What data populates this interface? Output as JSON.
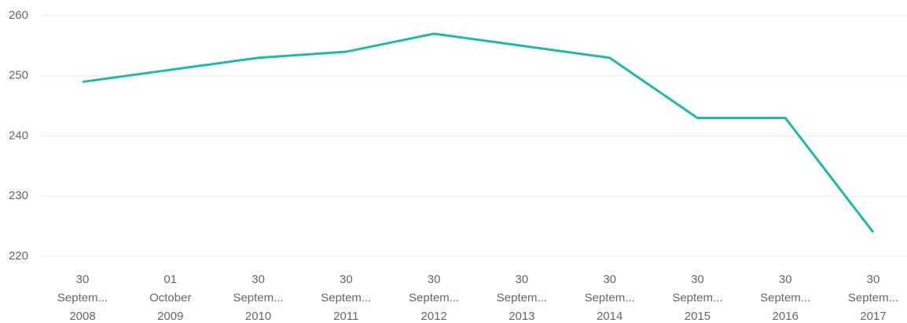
{
  "chart_data": {
    "type": "line",
    "categories": [
      [
        "30",
        "Septem...",
        "2008"
      ],
      [
        "01",
        "October",
        "2009"
      ],
      [
        "30",
        "Septem...",
        "2010"
      ],
      [
        "30",
        "Septem...",
        "2011"
      ],
      [
        "30",
        "Septem...",
        "2012"
      ],
      [
        "30",
        "Septem...",
        "2013"
      ],
      [
        "30",
        "Septem...",
        "2014"
      ],
      [
        "30",
        "Septem...",
        "2015"
      ],
      [
        "30",
        "Septem...",
        "2016"
      ],
      [
        "30",
        "Septem...",
        "2017"
      ]
    ],
    "values": [
      249,
      251,
      253,
      254,
      257,
      255,
      253,
      243,
      243,
      224
    ],
    "color": "#20b9a9",
    "ylim": [
      220,
      260
    ],
    "yticks": [
      220,
      230,
      240,
      250,
      260
    ],
    "grid": true
  }
}
